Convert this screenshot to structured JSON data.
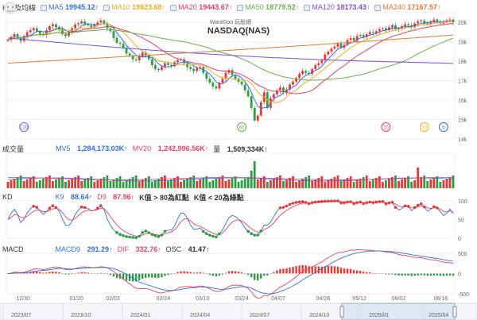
{
  "main": {
    "label": "K線及均線",
    "title": "NASDAQ(NAS)",
    "watermark": "WantGoo 玩股網",
    "ma": [
      {
        "name": "MA5",
        "value": "19945.12↑",
        "color": "#2f6fde"
      },
      {
        "name": "MA10",
        "value": "19823.68↑",
        "color": "#e8b020"
      },
      {
        "name": "MA20",
        "value": "19443.67↑",
        "color": "#e0406a"
      },
      {
        "name": "MA50",
        "value": "18779.52↑",
        "color": "#6ab04c"
      },
      {
        "name": "MA120",
        "value": "18173.43↑",
        "color": "#7a4fd6"
      },
      {
        "name": "MA240",
        "value": "17167.57↑",
        "color": "#e07a30"
      }
    ],
    "y_ticks": [
      "20k",
      "19k",
      "18k",
      "17k",
      "16k",
      "15k",
      "14k"
    ],
    "events": [
      {
        "label": "120",
        "color": "#8a5ce0",
        "x_idx": 5
      },
      {
        "label": "60",
        "color": "#6ab04c",
        "x_idx": 73
      },
      {
        "label": "20",
        "color": "#e0406a",
        "x_idx": 118
      },
      {
        "label": "10",
        "color": "#e8b020",
        "x_idx": 130
      },
      {
        "label": "5",
        "color": "#2f6fde",
        "x_idx": 136
      }
    ]
  },
  "volume": {
    "label": "成交量",
    "mv5_name": "MV5",
    "mv5_value": "1,284,173.03K↑",
    "mv20_name": "MV20",
    "mv20_value": "1,242,996.56K↑",
    "amount_name": "量",
    "amount_value": "1,509,334K↑"
  },
  "kd": {
    "label": "KD",
    "k_name": "K9",
    "k_value": "88.64↑",
    "d_name": "D9",
    "d_value": "87.96↑",
    "note1": "K值 > 80為紅點",
    "note2": "K值 < 20為綠點",
    "y_ticks": [
      "100",
      "50",
      "0"
    ]
  },
  "macd": {
    "label": "MACD",
    "macd_name": "MACD9",
    "macd_value": "291.29↑",
    "dif_name": "DIF",
    "dif_value": "332.76↑",
    "osc_name": "OSC",
    "osc_value": "41.47↑",
    "y_ticks": [
      "500",
      "0",
      "-500"
    ]
  },
  "x_axis": [
    "12/30",
    "01/20",
    "02/03",
    "02/24",
    "03/10",
    "03/24",
    "04/07",
    "04/28",
    "05/12",
    "06/02",
    "06/16"
  ],
  "nav_axis": [
    "2023/07",
    "2023/10",
    "2024/01",
    "2024/04",
    "2024/07",
    "2024/10",
    "2025/01",
    "2025/04"
  ],
  "chart_data": {
    "type": "candlestick",
    "title": "NASDAQ(NAS)",
    "ylim": [
      14000,
      20500
    ],
    "close": [
      19100,
      19250,
      19400,
      19200,
      19050,
      19300,
      19500,
      19600,
      19700,
      19550,
      19400,
      19350,
      19600,
      19800,
      19900,
      19750,
      19650,
      19400,
      19300,
      19500,
      19700,
      19900,
      19950,
      20050,
      19900,
      19850,
      19750,
      19900,
      20000,
      20100,
      19950,
      19700,
      19550,
      19200,
      18950,
      18900,
      18700,
      18400,
      18300,
      18100,
      18050,
      18250,
      18450,
      18300,
      18100,
      17800,
      17600,
      17550,
      17700,
      17900,
      17800,
      17750,
      17950,
      18050,
      18100,
      17900,
      17700,
      17600,
      17500,
      17650,
      17700,
      17400,
      17100,
      16900,
      16700,
      16600,
      16900,
      17100,
      17400,
      17550,
      17300,
      17100,
      16950,
      16800,
      16500,
      16200,
      15600,
      14950,
      15200,
      15900,
      16400,
      15600,
      16100,
      16300,
      16500,
      16650,
      16400,
      16550,
      16800,
      16950,
      17150,
      17350,
      17500,
      17400,
      17350,
      17600,
      17800,
      17900,
      18050,
      18350,
      18500,
      18650,
      18750,
      18900,
      18700,
      18850,
      19100,
      19200,
      19050,
      19300,
      19350,
      19250,
      19400,
      19500,
      19450,
      19550,
      19650,
      19700,
      19600,
      19750,
      19850,
      19650,
      19700,
      19800,
      19900,
      19850,
      19750,
      19950,
      20050,
      20100,
      19950,
      19900,
      20050,
      20150,
      20050,
      19950,
      20000,
      20100,
      20150,
      20000
    ]
  }
}
